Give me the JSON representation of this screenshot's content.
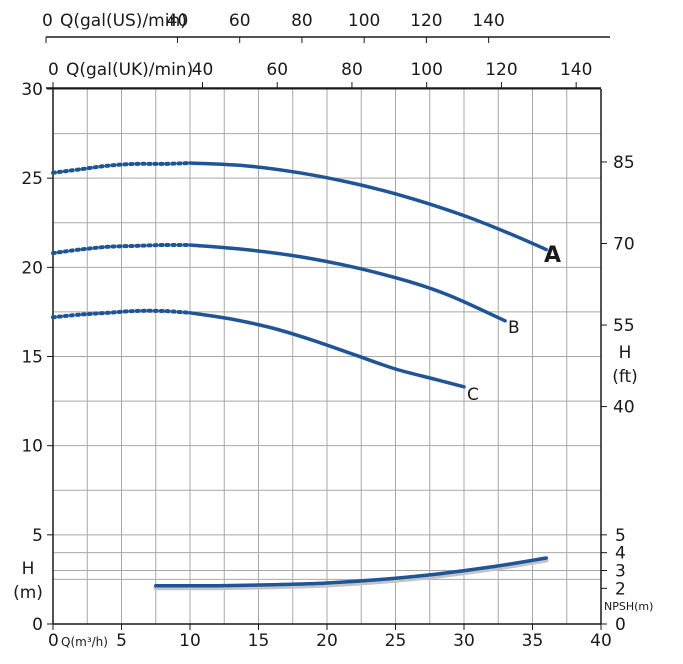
{
  "chart_data": {
    "type": "line",
    "x_axis_label": "Q(m³/h)",
    "x_ticks": [
      0,
      5,
      10,
      15,
      20,
      25,
      30,
      35,
      40
    ],
    "xlim": [
      0,
      40
    ],
    "y_left_label_line1": "H",
    "y_left_label_line2": "(m)",
    "y_left_ticks": [
      0,
      5,
      10,
      15,
      20,
      25,
      30
    ],
    "ylim": [
      0,
      30
    ],
    "y_right_label_line1": "H",
    "y_right_label_line2": "(ft)",
    "y_right_ticks": [
      40,
      55,
      70,
      85
    ],
    "npsh_label": "NPSH(m)",
    "npsh_ticks": [
      0,
      2,
      3,
      4,
      5
    ],
    "us_axis_label": "Q(gal(US)/min)",
    "us_ticks": [
      0,
      40,
      60,
      80,
      100,
      120,
      140
    ],
    "uk_axis_label": "Q(gal(UK)/min)",
    "uk_ticks": [
      0,
      40,
      60,
      80,
      100,
      120,
      140
    ],
    "series_color": "#1f5597",
    "series": [
      {
        "name": "A",
        "dashed": [
          [
            0,
            25.3
          ],
          [
            2,
            25.5
          ],
          [
            4,
            25.7
          ],
          [
            6,
            25.8
          ],
          [
            8,
            25.8
          ],
          [
            10,
            25.85
          ]
        ],
        "solid": [
          [
            10,
            25.85
          ],
          [
            14,
            25.7
          ],
          [
            18,
            25.3
          ],
          [
            22,
            24.7
          ],
          [
            26,
            23.9
          ],
          [
            30,
            22.9
          ],
          [
            33,
            22.0
          ],
          [
            36,
            21.0
          ]
        ]
      },
      {
        "name": "B",
        "dashed": [
          [
            0,
            20.8
          ],
          [
            2,
            21.0
          ],
          [
            4,
            21.15
          ],
          [
            6,
            21.2
          ],
          [
            8,
            21.25
          ],
          [
            10,
            21.25
          ]
        ],
        "solid": [
          [
            10,
            21.25
          ],
          [
            14,
            21.0
          ],
          [
            18,
            20.6
          ],
          [
            22,
            20.0
          ],
          [
            26,
            19.2
          ],
          [
            29,
            18.4
          ],
          [
            33,
            17.0
          ]
        ]
      },
      {
        "name": "C",
        "dashed": [
          [
            0,
            17.2
          ],
          [
            2,
            17.35
          ],
          [
            4,
            17.45
          ],
          [
            6,
            17.55
          ],
          [
            8,
            17.55
          ],
          [
            10,
            17.45
          ]
        ],
        "solid": [
          [
            10,
            17.45
          ],
          [
            13,
            17.1
          ],
          [
            16,
            16.6
          ],
          [
            19,
            15.9
          ],
          [
            22,
            15.1
          ],
          [
            25,
            14.3
          ],
          [
            28,
            13.7
          ],
          [
            30,
            13.3
          ]
        ]
      },
      {
        "name": "NPSH",
        "solid": [
          [
            7.5,
            2.15
          ],
          [
            12,
            2.15
          ],
          [
            16,
            2.2
          ],
          [
            20,
            2.3
          ],
          [
            24,
            2.5
          ],
          [
            28,
            2.8
          ],
          [
            32,
            3.2
          ],
          [
            36,
            3.7
          ]
        ]
      }
    ],
    "labels": {
      "A": "A",
      "B": "B",
      "C": "C"
    }
  }
}
